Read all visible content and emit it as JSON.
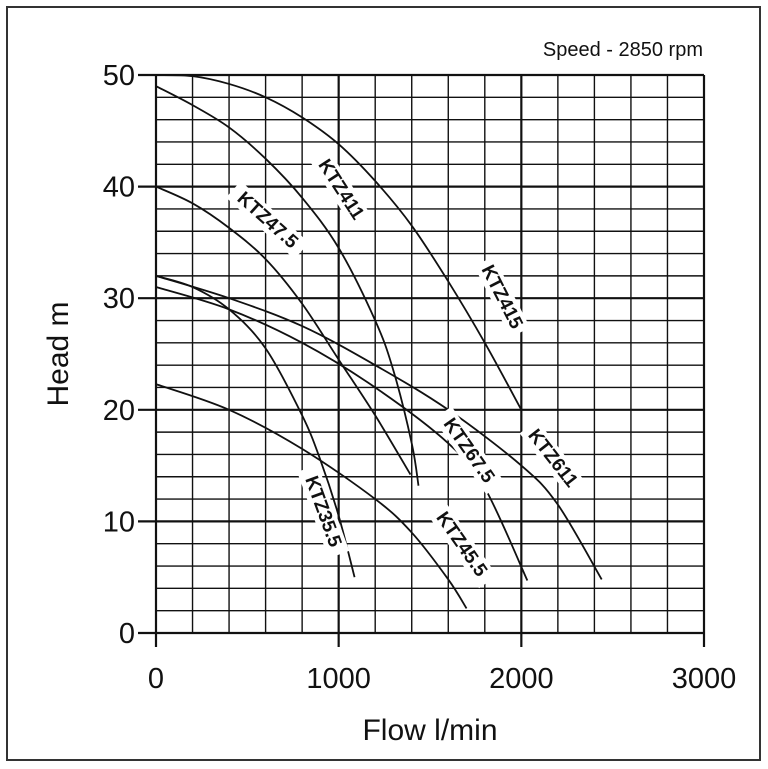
{
  "chart_data": {
    "type": "line",
    "title": "",
    "annotation": "Speed - 2850 rpm",
    "xlabel": "Flow l/min",
    "ylabel": "Head m",
    "xlim": [
      0,
      3000
    ],
    "ylim": [
      0,
      50
    ],
    "x_ticks": [
      0,
      1000,
      2000,
      3000
    ],
    "y_ticks": [
      0,
      10,
      20,
      30,
      40,
      50
    ],
    "x_minor_step": 200,
    "y_minor_step": 2,
    "grid": true,
    "legend": "inline curve labels",
    "series": [
      {
        "name": "KTZ415",
        "x": [
          0,
          200,
          400,
          600,
          800,
          1000,
          1200,
          1400,
          1600,
          1800,
          2000
        ],
        "y": [
          50,
          49.9,
          49.2,
          48,
          46.2,
          43.8,
          40.5,
          36.5,
          31.5,
          26,
          20
        ],
        "label_pos": [
          1880,
          30
        ],
        "label_angle": 63
      },
      {
        "name": "KTZ411",
        "x": [
          0,
          200,
          400,
          600,
          800,
          1000,
          1200,
          1300,
          1400,
          1437
        ],
        "y": [
          49,
          47.3,
          45.3,
          42.5,
          39,
          34.5,
          28,
          23.5,
          17,
          13.2
        ],
        "label_pos": [
          1000,
          39.6
        ],
        "label_angle": 57
      },
      {
        "name": "KTZ47.5",
        "x": [
          0,
          200,
          400,
          600,
          800,
          1000,
          1200,
          1393
        ],
        "y": [
          40,
          38.5,
          36.3,
          33.5,
          29.5,
          24.5,
          19.5,
          14.2
        ],
        "label_pos": [
          600,
          36.8
        ],
        "label_angle": 42
      },
      {
        "name": "KTZ611",
        "x": [
          0,
          400,
          800,
          1200,
          1600,
          2000,
          2200,
          2440
        ],
        "y": [
          32,
          30,
          27.5,
          24,
          20,
          15,
          11.5,
          4.8
        ],
        "label_pos": [
          2160,
          15.5
        ],
        "label_angle": 52
      },
      {
        "name": "KTZ67.5",
        "x": [
          0,
          400,
          800,
          1200,
          1600,
          1800,
          2033
        ],
        "y": [
          31,
          29,
          26,
          22,
          17,
          13,
          4.7
        ],
        "label_pos": [
          1700,
          16.2
        ],
        "label_angle": 55
      },
      {
        "name": "KTZ35.5",
        "x": [
          0,
          200,
          400,
          600,
          800,
          900,
          1000,
          1087
        ],
        "y": [
          32,
          31,
          29,
          25.5,
          19.5,
          15.5,
          10.5,
          5
        ],
        "label_pos": [
          900,
          10.8
        ],
        "label_angle": 70
      },
      {
        "name": "KTZ45.5",
        "x": [
          0,
          400,
          800,
          1200,
          1400,
          1600,
          1700
        ],
        "y": [
          22.3,
          20,
          16.5,
          12,
          9,
          4.8,
          2.2
        ],
        "label_pos": [
          1660,
          7.8
        ],
        "label_angle": 55
      }
    ]
  }
}
